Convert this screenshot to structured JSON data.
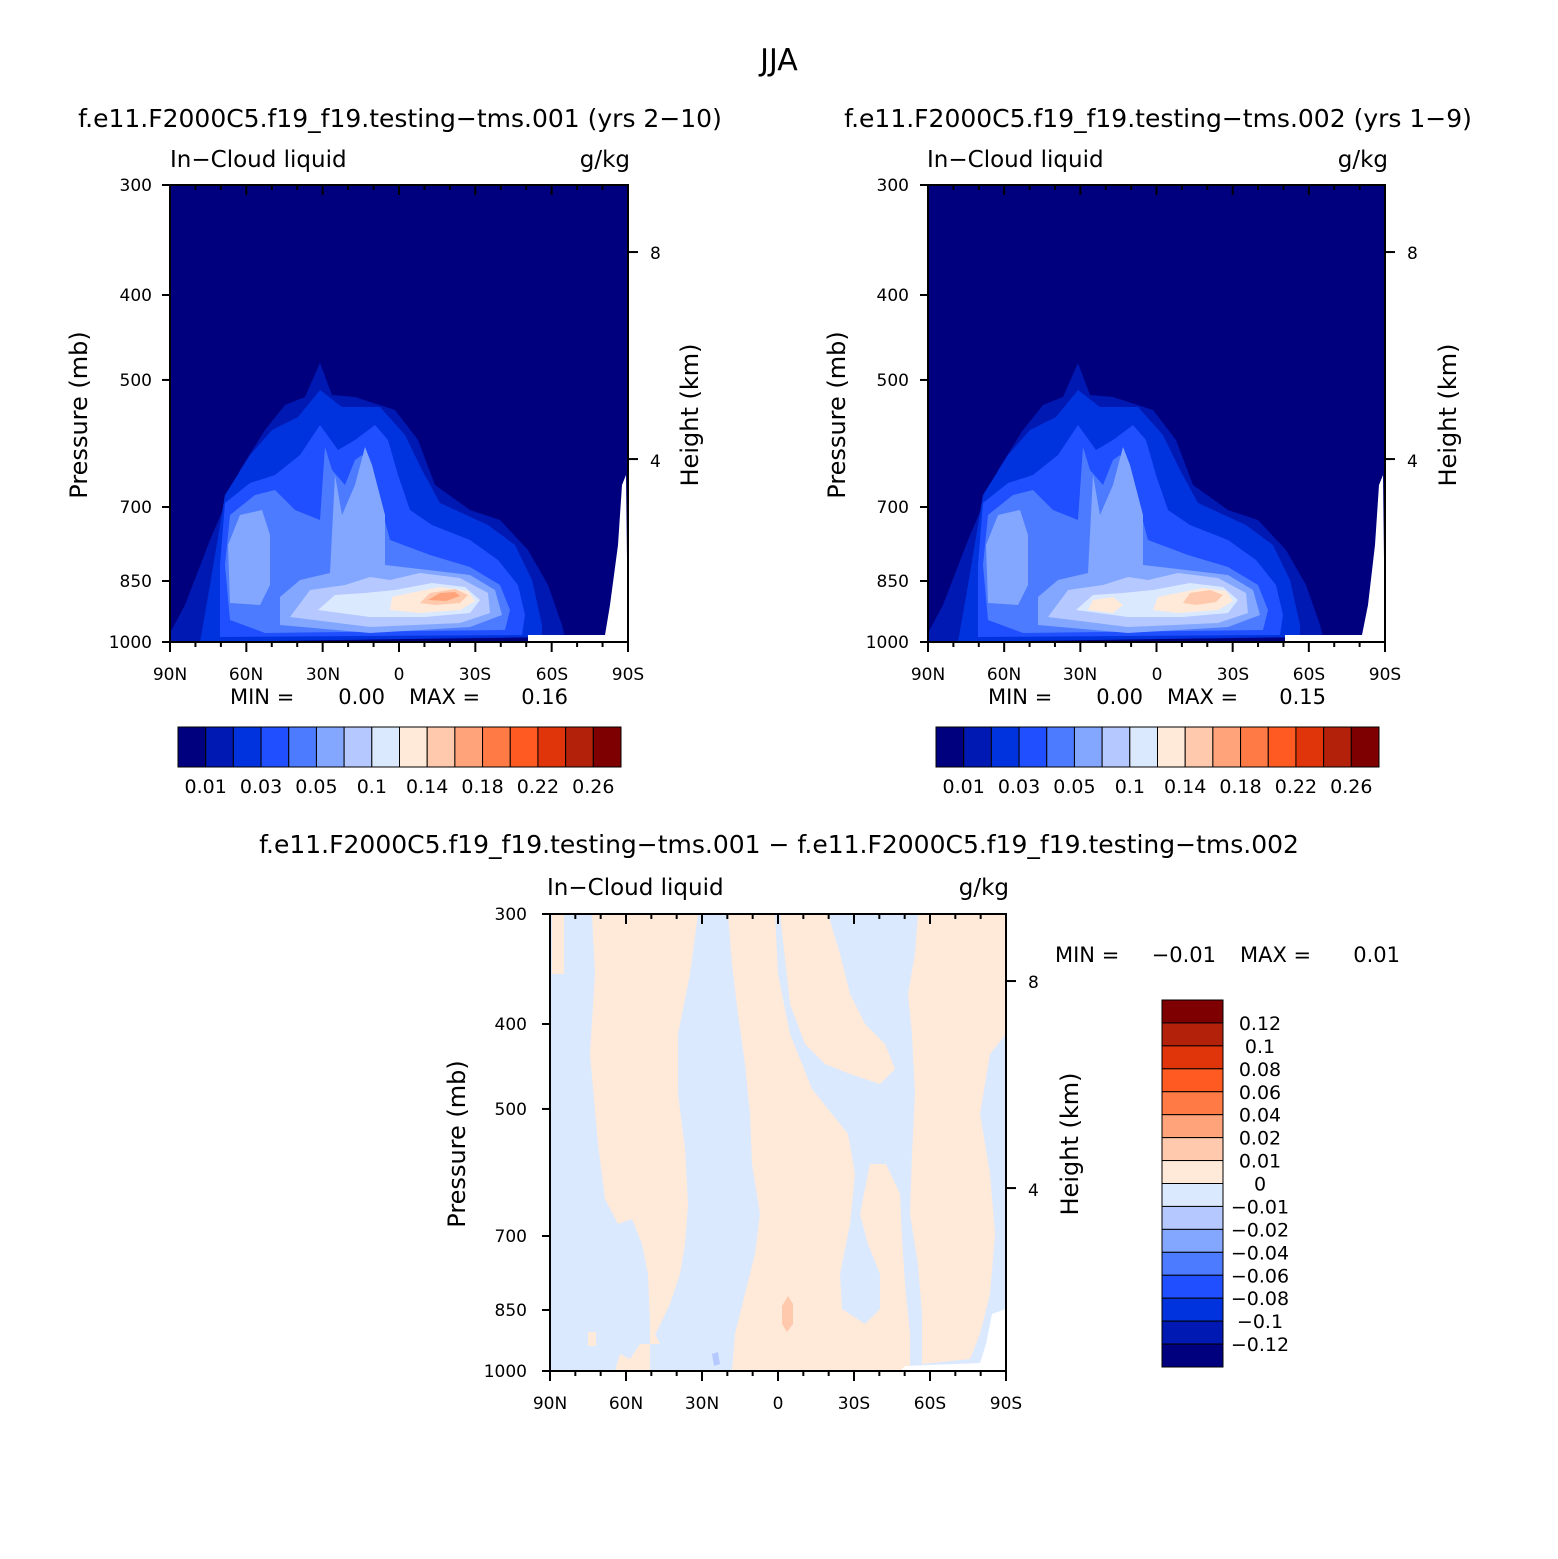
{
  "figure": {
    "title": "JJA",
    "palette_field": [
      "#00007f",
      "#0019b3",
      "#0033dd",
      "#1f4fff",
      "#4d7bff",
      "#83a7ff",
      "#b5c8ff",
      "#dbe9ff",
      "#ffe9d8",
      "#ffc9ad",
      "#ffa47a",
      "#ff7a45",
      "#ff5a21",
      "#e0350a",
      "#b3210a",
      "#7f0000"
    ],
    "palette_diff": [
      "#7f0000",
      "#b3210a",
      "#e0350a",
      "#ff5a21",
      "#ff7a45",
      "#ffa47a",
      "#ffc9ad",
      "#ffe9d8",
      "#dbe9ff",
      "#b5c8ff",
      "#83a7ff",
      "#4d7bff",
      "#1f4fff",
      "#0033dd",
      "#0019b3",
      "#00007f"
    ]
  },
  "chart_data": [
    {
      "type": "heatmap",
      "title": "f.e11.F2000C5.f19_f19.testing-tms.001 (yrs 2-10)",
      "left_label": "In-Cloud liquid",
      "right_label": "g/kg",
      "xlabel": "",
      "ylabel": "Pressure (mb)",
      "ylabel_right": "Height (km)",
      "x_ticks": [
        "90N",
        "60N",
        "30N",
        "0",
        "30S",
        "60S",
        "90S"
      ],
      "y_ticks": [
        "300",
        "400",
        "500",
        "700",
        "850",
        "1000"
      ],
      "y_right_ticks": [
        "8",
        "4"
      ],
      "ylim": [
        1000,
        300
      ],
      "stats": {
        "min_label": "MIN =",
        "min": "0.00",
        "max_label": "MAX =",
        "max": "0.16"
      },
      "colorbar_labels": [
        "0.01",
        "0.03",
        "0.05",
        "0.1",
        "0.14",
        "0.18",
        "0.22",
        "0.26"
      ]
    },
    {
      "type": "heatmap",
      "title": "f.e11.F2000C5.f19_f19.testing-tms.002 (yrs 1-9)",
      "left_label": "In-Cloud liquid",
      "right_label": "g/kg",
      "xlabel": "",
      "ylabel": "Pressure (mb)",
      "ylabel_right": "Height (km)",
      "x_ticks": [
        "90N",
        "60N",
        "30N",
        "0",
        "30S",
        "60S",
        "90S"
      ],
      "y_ticks": [
        "300",
        "400",
        "500",
        "700",
        "850",
        "1000"
      ],
      "y_right_ticks": [
        "8",
        "4"
      ],
      "ylim": [
        1000,
        300
      ],
      "stats": {
        "min_label": "MIN =",
        "min": "0.00",
        "max_label": "MAX =",
        "max": "0.15"
      },
      "colorbar_labels": [
        "0.01",
        "0.03",
        "0.05",
        "0.1",
        "0.14",
        "0.18",
        "0.22",
        "0.26"
      ]
    },
    {
      "type": "heatmap",
      "title": "f.e11.F2000C5.f19_f19.testing-tms.001 - f.e11.F2000C5.f19_f19.testing-tms.002",
      "left_label": "In-Cloud liquid",
      "right_label": "g/kg",
      "xlabel": "",
      "ylabel": "Pressure (mb)",
      "ylabel_right": "Height (km)",
      "x_ticks": [
        "90N",
        "60N",
        "30N",
        "0",
        "30S",
        "60S",
        "90S"
      ],
      "y_ticks": [
        "300",
        "400",
        "500",
        "700",
        "850",
        "1000"
      ],
      "y_right_ticks": [
        "8",
        "4"
      ],
      "ylim": [
        1000,
        300
      ],
      "stats": {
        "min_label": "MIN =",
        "min": "-0.01",
        "max_label": "MAX =",
        "max": "0.01"
      },
      "colorbar_labels": [
        "0.12",
        "0.1",
        "0.08",
        "0.06",
        "0.04",
        "0.02",
        "0.01",
        "0",
        "-0.01",
        "-0.02",
        "-0.04",
        "-0.06",
        "-0.08",
        "-0.1",
        "-0.12"
      ]
    }
  ]
}
